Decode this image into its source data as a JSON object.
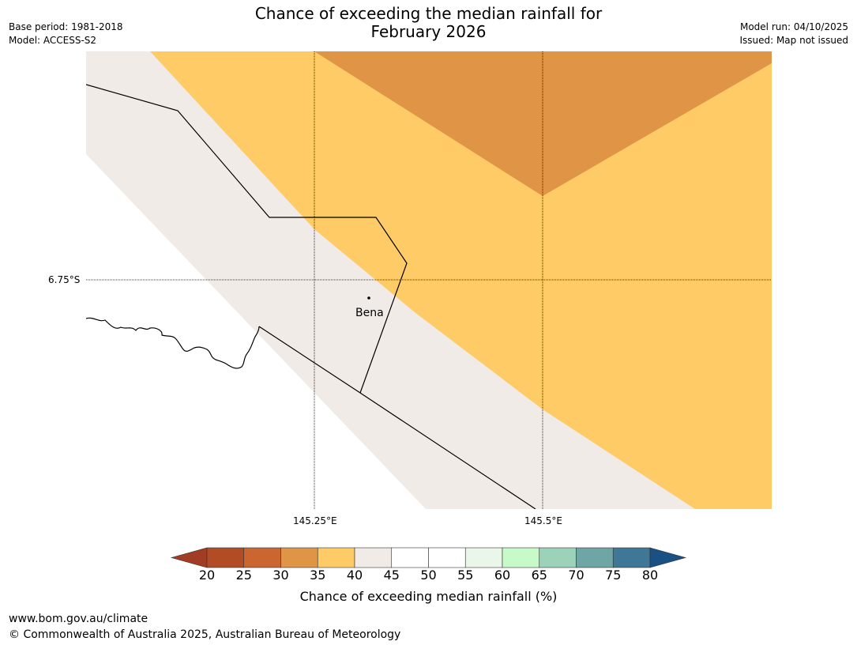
{
  "header": {
    "title_line1": "Chance of exceeding the median rainfall for",
    "title_line2": "February 2026",
    "base_period": "Base period: 1981-2018",
    "model": "Model: ACCESS-S2",
    "model_run": "Model run: 04/10/2025",
    "issued": "Issued: Map not issued"
  },
  "map": {
    "lat_label": "6.75°S",
    "lon_labels": [
      "145.25°E",
      "145.5°E"
    ],
    "place_label": "Bena"
  },
  "colorbar": {
    "ticks": [
      "20",
      "25",
      "30",
      "35",
      "40",
      "45",
      "50",
      "55",
      "60",
      "65",
      "70",
      "75",
      "80"
    ],
    "colors": [
      "#a03d24",
      "#b24c25",
      "#cc6630",
      "#e09446",
      "#fecb66",
      "#f0ebe6",
      "#ffffff",
      "#ffffff",
      "#ebf6eb",
      "#c8fac8",
      "#9bd2b9",
      "#6ea5a5",
      "#3f7896",
      "#1a5084"
    ],
    "label": "Chance of exceeding median rainfall (%)"
  },
  "footer": {
    "url": "www.bom.gov.au/climate",
    "copyright": "© Commonwealth of Australia 2025, Australian Bureau of Meteorology"
  }
}
